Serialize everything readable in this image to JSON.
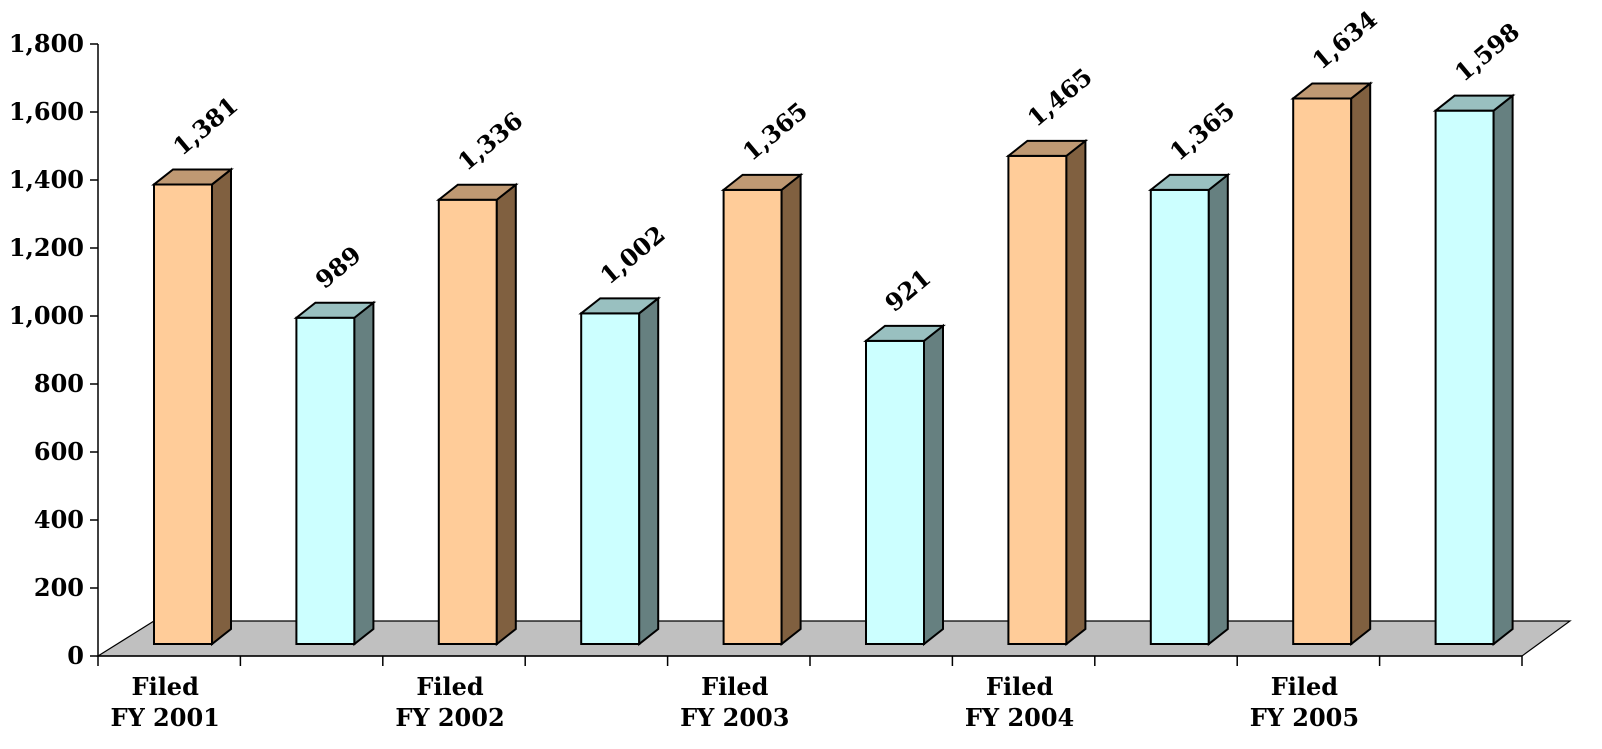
{
  "chart_data": {
    "type": "bar",
    "categories": [
      "Filed\nFY 2001",
      "",
      "Filed\nFY 2002",
      "",
      "Filed\nFY 2003",
      "",
      "Filed\nFY 2004",
      "",
      "Filed\nFY 2005",
      ""
    ],
    "values": [
      1381,
      989,
      1336,
      1002,
      1365,
      921,
      1465,
      1365,
      1634,
      1598
    ],
    "data_labels": [
      "1,381",
      "989",
      "1,336",
      "1,002",
      "1,365",
      "921",
      "1,465",
      "1,365",
      "1,634",
      "1,598"
    ],
    "bar_styles": [
      "orange",
      "cyan",
      "orange",
      "cyan",
      "orange",
      "cyan",
      "orange",
      "cyan",
      "orange",
      "cyan"
    ],
    "yticks": [
      0,
      200,
      400,
      600,
      800,
      1000,
      1200,
      1400,
      1600,
      1800
    ],
    "ytick_labels": [
      "0",
      "200",
      "400",
      "600",
      "800",
      "1,000",
      "1,200",
      "1,400",
      "1,600",
      "1,800"
    ],
    "ylim": [
      0,
      1800
    ],
    "title": "",
    "xlabel": "",
    "ylabel": "",
    "grid": false,
    "three_d": true,
    "colors": {
      "orange_front": "#FFCC99",
      "orange_side": "#806040",
      "orange_top": "#BF9973",
      "cyan_front": "#CCFFFF",
      "cyan_side": "#668080",
      "cyan_top": "#99C0C0",
      "floor": "#C0C0C0",
      "axis": "#000000"
    }
  }
}
